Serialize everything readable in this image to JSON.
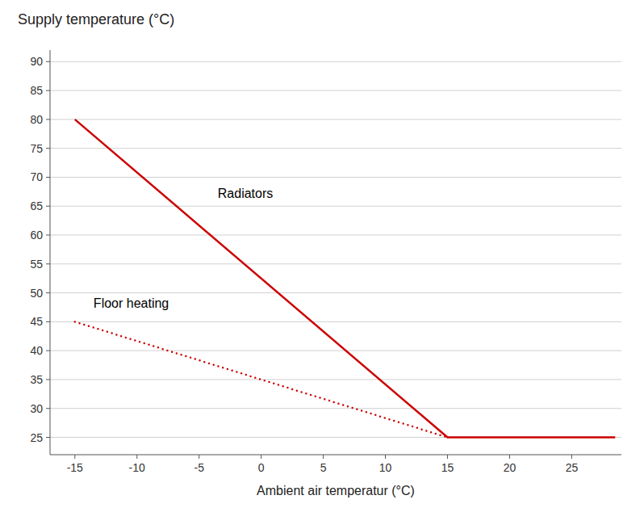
{
  "chart_data": {
    "type": "line",
    "title": "Supply temperature (°C)",
    "x_label": "Ambient air temperatur (°C)",
    "xlim": [
      -17,
      29
    ],
    "ylim": [
      22,
      92
    ],
    "xticks": [
      -15,
      -10,
      -5,
      0,
      5,
      10,
      15,
      20,
      25
    ],
    "yticks": [
      25,
      30,
      35,
      40,
      45,
      50,
      55,
      60,
      65,
      70,
      75,
      80,
      85,
      90
    ],
    "grid": "y",
    "series": [
      {
        "x": [
          -15,
          15,
          28.5
        ],
        "values": [
          80,
          25,
          25
        ],
        "color": "#cc0000",
        "line_style": "solid"
      },
      {
        "x": [
          -15,
          15
        ],
        "values": [
          45,
          25
        ],
        "color": "#cc0000",
        "line_style": "dotted"
      }
    ],
    "annotations": [
      {
        "text": "Radiators",
        "x": -3.5,
        "y": 66
      },
      {
        "text": "Floor heating",
        "x": -13.5,
        "y": 47
      }
    ]
  }
}
